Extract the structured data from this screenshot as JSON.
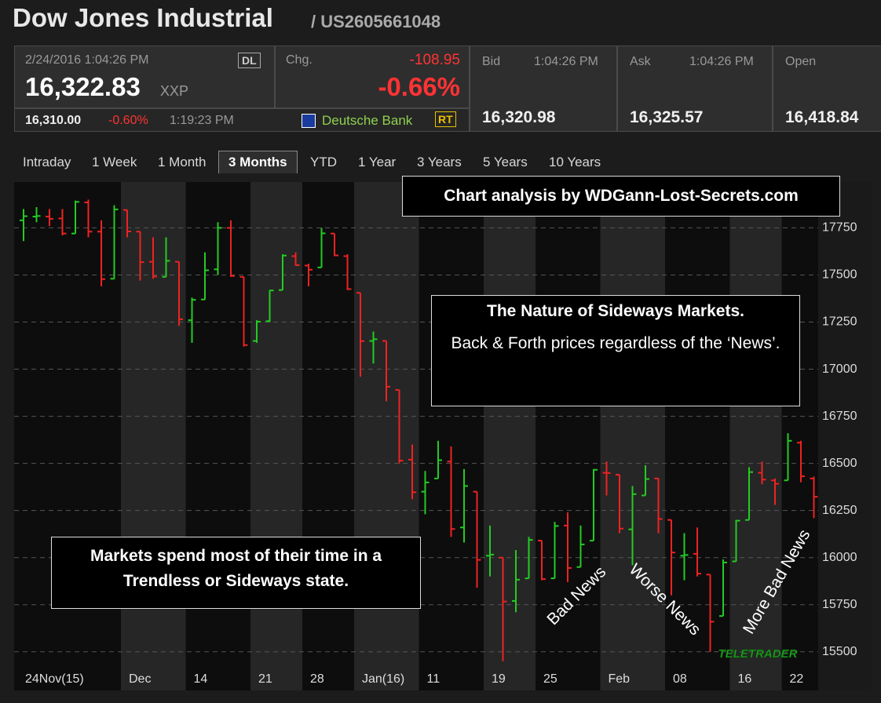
{
  "header": {
    "title": "Dow Jones Industrial",
    "isin": "/ US2605661048"
  },
  "quote": {
    "datetime": "2/24/2016 1:04:26 PM",
    "exchange_badge": "DL",
    "last": "16,322.83",
    "unit": "XXP",
    "chg_label": "Chg.",
    "chg": "-108.95",
    "chg_pct": "-0.66%",
    "alt_price": "16,310.00",
    "alt_pct": "-0.60%",
    "alt_time": "1:19:23 PM",
    "source": "Deutsche Bank",
    "rt_badge": "RT",
    "bid_label": "Bid",
    "bid_time": "1:04:26 PM",
    "bid": "16,320.98",
    "ask_label": "Ask",
    "ask_time": "1:04:26 PM",
    "ask": "16,325.57",
    "open_label": "Open",
    "open": "16,418.84"
  },
  "tabs": [
    "Intraday",
    "1 Week",
    "1 Month",
    "3 Months",
    "YTD",
    "1 Year",
    "3 Years",
    "5 Years",
    "10 Years"
  ],
  "active_tab": 3,
  "chart_data": {
    "type": "ohlc",
    "up_color": "#22cc22",
    "down_color": "#ee2222",
    "grid": true,
    "categories": [
      "24Nov(15)",
      null,
      null,
      null,
      null,
      null,
      null,
      null,
      "Dec",
      null,
      null,
      null,
      null,
      "14",
      null,
      null,
      null,
      null,
      "21",
      null,
      null,
      null,
      "28",
      null,
      null,
      null,
      "Jan(16)",
      null,
      null,
      null,
      null,
      "11",
      null,
      null,
      null,
      null,
      "19",
      null,
      null,
      null,
      "25",
      null,
      null,
      null,
      null,
      "Feb",
      null,
      null,
      null,
      null,
      "08",
      null,
      null,
      null,
      null,
      "16",
      null,
      null,
      null,
      "22",
      null,
      null
    ],
    "open": [
      17790,
      17810,
      17810,
      17800,
      17720,
      17885,
      17730,
      17480,
      17845,
      17730,
      17570,
      17490,
      17570,
      17260,
      17370,
      17530,
      17750,
      17490,
      17150,
      17255,
      17420,
      17600,
      17550,
      17540,
      17720,
      17600,
      17405,
      17150,
      17150,
      16890,
      16520,
      16350,
      16420,
      16510,
      16160,
      16350,
      16010,
      16000,
      15770,
      15890,
      16090,
      15890,
      16170,
      15950,
      16090,
      16450,
      16440,
      16150,
      16330,
      16420,
      16200,
      16010,
      16020,
      15910,
      15690,
      15980,
      16200,
      16450,
      16410,
      16410,
      16610,
      16420
    ],
    "high": [
      17850,
      17860,
      17850,
      17850,
      17895,
      17900,
      17790,
      17870,
      17845,
      17730,
      17700,
      17700,
      17570,
      17380,
      17620,
      17780,
      17790,
      17490,
      17260,
      17420,
      17610,
      17620,
      17560,
      17750,
      17720,
      17610,
      17405,
      17200,
      17150,
      16890,
      16600,
      16460,
      16620,
      16590,
      16470,
      16350,
      16170,
      16000,
      16040,
      16110,
      16090,
      16190,
      16240,
      16170,
      16470,
      16510,
      16440,
      16380,
      16490,
      16420,
      16200,
      16130,
      16160,
      15910,
      15990,
      16200,
      16480,
      16510,
      16420,
      16660,
      16620,
      16430
    ],
    "low": [
      17680,
      17780,
      17760,
      17710,
      17720,
      17700,
      17440,
      17480,
      17700,
      17470,
      17480,
      17490,
      17230,
      17140,
      17370,
      17500,
      17490,
      17120,
      17140,
      17250,
      17420,
      17550,
      17440,
      17540,
      17600,
      17420,
      16960,
      17030,
      16830,
      16500,
      16310,
      16230,
      16420,
      16110,
      16080,
      15840,
      15900,
      15450,
      15710,
      15890,
      15880,
      15890,
      15870,
      15950,
      16090,
      16330,
      16130,
      15960,
      16330,
      16130,
      15800,
      15880,
      15900,
      15500,
      15690,
      15980,
      16200,
      16390,
      16280,
      16410,
      16400,
      16210
    ],
    "close": [
      17812,
      17813,
      17798,
      17720,
      17888,
      17730,
      17478,
      17848,
      17731,
      17568,
      17492,
      17575,
      17265,
      17368,
      17525,
      17750,
      17495,
      17128,
      17252,
      17418,
      17603,
      17552,
      17528,
      17721,
      17604,
      17425,
      17149,
      17159,
      16907,
      16515,
      16347,
      16399,
      16517,
      16152,
      16380,
      15988,
      16016,
      15767,
      15883,
      16094,
      15886,
      16168,
      15945,
      16070,
      16466,
      16449,
      16154,
      16337,
      16417,
      16205,
      16027,
      16014,
      15915,
      15660,
      15974,
      16196,
      16454,
      16414,
      16392,
      16620,
      16432,
      16323
    ],
    "ylim": [
      15420,
      17960
    ],
    "yticks": [
      15500,
      15750,
      16000,
      16250,
      16500,
      16750,
      17000,
      17250,
      17500,
      17750
    ],
    "annotations": {
      "credit": "Chart analysis by WDGann-Lost-Secrets.com",
      "box_title": "The Nature of Sideways Markets.",
      "box_body": "Back & Forth prices regardless of the ‘News’.",
      "left_box": "Markets spend most of their time in a Trendless or Sideways state.",
      "news1": "Bad News",
      "news2": "Worse  News",
      "news3": "More Bad News"
    },
    "logo": "TELETRADER"
  }
}
